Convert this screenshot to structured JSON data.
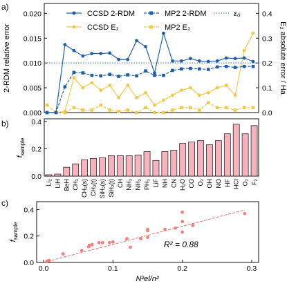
{
  "molecules": [
    "Li₂",
    "LiH",
    "BeH",
    "CH₃",
    "CH₂(s)",
    "CH₂(t)",
    "SiH₂(s)",
    "SiH₂(t)",
    "CH",
    "NH₃",
    "NH₂",
    "PH₃",
    "LiF",
    "NH",
    "CN",
    "H₂O",
    "CO",
    "O₂",
    "OH",
    "NO",
    "HF",
    "HCl",
    "O₂",
    "F₂"
  ],
  "panel_labels": {
    "a": "a)",
    "b": "b)",
    "c": "c)"
  },
  "colors": {
    "blue": "#1f5fa5",
    "gold": "#f0c84a",
    "eps": "#2a60c4",
    "bar": "#f5b3bd",
    "scatter": "#f08080",
    "fit": "#f06a6a"
  },
  "chart_data": [
    {
      "type": "line",
      "panel": "a",
      "xlabel": "",
      "ylabel": "2-RDM relative error",
      "y2label": "E₂ absolute error / Ha",
      "ylim": [
        0,
        0.022
      ],
      "yticks": [
        "0.000",
        "0.005",
        "0.010",
        "0.015",
        "0.020"
      ],
      "y2lim": [
        0,
        0.44
      ],
      "y2ticks": [
        "0.0",
        "0.1",
        "0.2",
        "0.3",
        "0.4"
      ],
      "epsilon": 0.01,
      "legend": [
        "CCSD 2-RDM",
        "MP2 2-RDM",
        "ε₀",
        "CCSD E₂",
        "MP2 E₂"
      ],
      "legend_position": "top-center",
      "series": [
        {
          "name": "CCSD 2-RDM",
          "axis": "left",
          "style": "solid",
          "values": [
            0.0,
            0.0,
            0.0137,
            0.0125,
            0.0114,
            0.0119,
            0.0119,
            0.012,
            0.0107,
            0.0107,
            0.0145,
            0.0133,
            0.008,
            0.016,
            0.0104,
            0.0104,
            0.0109,
            0.0104,
            0.0103,
            0.0104,
            0.011,
            0.0109,
            0.011,
            0.0103
          ]
        },
        {
          "name": "MP2 2-RDM",
          "axis": "left",
          "style": "dashed",
          "values": [
            0.0,
            0.0,
            0.0052,
            0.0081,
            0.008,
            0.0075,
            0.0074,
            0.0077,
            0.0073,
            0.0076,
            0.0074,
            0.0084,
            0.0075,
            0.0075,
            0.0085,
            0.0088,
            0.0089,
            0.0088,
            0.0087,
            0.0092,
            0.0093,
            0.0091,
            0.0093,
            0.0093
          ]
        },
        {
          "name": "CCSD E₂",
          "axis": "right",
          "style": "solid",
          "values": [
            0.0,
            0.0,
            0.005,
            0.14,
            0.1,
            0.12,
            0.09,
            0.11,
            0.06,
            0.11,
            0.06,
            0.08,
            0.03,
            0.05,
            0.07,
            0.09,
            0.1,
            0.07,
            0.08,
            0.1,
            0.11,
            0.07,
            0.25,
            0.32
          ]
        },
        {
          "name": "MP2 E₂",
          "axis": "right",
          "style": "dashed",
          "values": [
            0.03,
            0.0,
            0.0,
            0.02,
            0.01,
            0.01,
            0.03,
            0.01,
            0.005,
            0.01,
            0.0,
            0.02,
            0.0,
            0.0,
            0.01,
            0.02,
            0.02,
            0.01,
            0.04,
            0.02,
            0.02,
            0.01,
            0.02,
            0.02
          ]
        }
      ]
    },
    {
      "type": "bar",
      "panel": "b",
      "ylabel": "f",
      "ylabel_sub": "sample",
      "ylim": [
        0,
        0.42
      ],
      "yticks": [
        "0.0",
        "0.2",
        "0.4"
      ],
      "values": [
        0.01,
        0.015,
        0.065,
        0.09,
        0.12,
        0.13,
        0.135,
        0.15,
        0.15,
        0.15,
        0.155,
        0.18,
        0.115,
        0.18,
        0.19,
        0.24,
        0.25,
        0.26,
        0.23,
        0.26,
        0.31,
        0.38,
        0.31,
        0.37
      ]
    },
    {
      "type": "scatter",
      "panel": "c",
      "ylabel": "f",
      "ylabel_sub": "sample",
      "xlabel": "N²el/n²",
      "xlim": [
        -0.01,
        0.31
      ],
      "ylim": [
        0,
        0.46
      ],
      "xticks": [
        "0.0",
        "0.1",
        "0.2",
        "0.3"
      ],
      "yticks": [
        "0.0",
        "0.2",
        "0.4"
      ],
      "annotation": "R² = 0.88",
      "points": [
        [
          0.005,
          0.01
        ],
        [
          0.008,
          0.015
        ],
        [
          0.028,
          0.065
        ],
        [
          0.055,
          0.09
        ],
        [
          0.065,
          0.12
        ],
        [
          0.066,
          0.13
        ],
        [
          0.07,
          0.135
        ],
        [
          0.08,
          0.15
        ],
        [
          0.085,
          0.15
        ],
        [
          0.095,
          0.15
        ],
        [
          0.1,
          0.155
        ],
        [
          0.12,
          0.18
        ],
        [
          0.125,
          0.115
        ],
        [
          0.14,
          0.18
        ],
        [
          0.15,
          0.19
        ],
        [
          0.15,
          0.24
        ],
        [
          0.175,
          0.25
        ],
        [
          0.19,
          0.26
        ],
        [
          0.2,
          0.23
        ],
        [
          0.215,
          0.28
        ],
        [
          0.2,
          0.31
        ],
        [
          0.2,
          0.38
        ],
        [
          0.29,
          0.37
        ],
        [
          0.15,
          0.25
        ]
      ],
      "fit": {
        "slope": 1.37,
        "intercept": 0.0
      }
    }
  ]
}
